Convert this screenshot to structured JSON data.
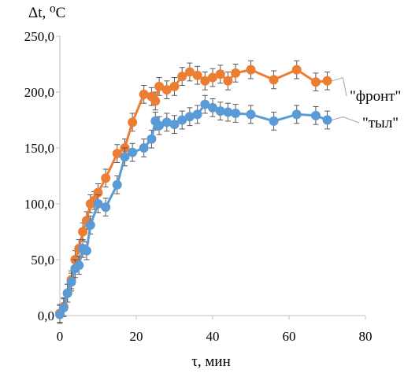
{
  "chart_data": {
    "type": "line",
    "title": "",
    "ylabel": "Δt, ⁰C",
    "xlabel": "τ, мин",
    "xlim": [
      0,
      80
    ],
    "ylim": [
      0,
      250
    ],
    "xticks": [
      0,
      20,
      40,
      60,
      80
    ],
    "yticks": [
      0,
      50,
      100,
      150,
      200,
      250
    ],
    "xtick_labels": [
      "0",
      "20",
      "40",
      "60",
      "80"
    ],
    "ytick_labels": [
      "0,0",
      "50,0",
      "100,0",
      "150,0",
      "200,0",
      "250,0"
    ],
    "grid": false,
    "error_bars": 8,
    "series": [
      {
        "name": "\"фронт\"",
        "color": "#ED7D31",
        "x": [
          0,
          1,
          2,
          3,
          4,
          5,
          6,
          7,
          8,
          9,
          10,
          12,
          15,
          17,
          19,
          22,
          24,
          25,
          26,
          28,
          30,
          32,
          34,
          36,
          38,
          40,
          42,
          44,
          46,
          50,
          56,
          62,
          67,
          70
        ],
        "y": [
          2,
          8,
          20,
          32,
          50,
          60,
          75,
          85,
          100,
          103,
          110,
          123,
          145,
          150,
          173,
          198,
          196,
          192,
          205,
          202,
          205,
          214,
          218,
          215,
          210,
          213,
          216,
          210,
          217,
          220,
          211,
          220,
          209,
          210
        ]
      },
      {
        "name": "\"тыл\"",
        "color": "#5B9BD5",
        "x": [
          0,
          1,
          2,
          3,
          4,
          5,
          6,
          7,
          8,
          10,
          12,
          15,
          17,
          19,
          22,
          24,
          25,
          26,
          28,
          30,
          32,
          34,
          36,
          38,
          40,
          42,
          44,
          46,
          50,
          56,
          62,
          67,
          70
        ],
        "y": [
          1,
          7,
          20,
          30,
          42,
          45,
          60,
          58,
          81,
          100,
          97,
          117,
          142,
          146,
          150,
          158,
          174,
          170,
          173,
          171,
          175,
          178,
          180,
          189,
          186,
          183,
          182,
          181,
          180,
          174,
          180,
          179,
          175
        ]
      }
    ]
  }
}
